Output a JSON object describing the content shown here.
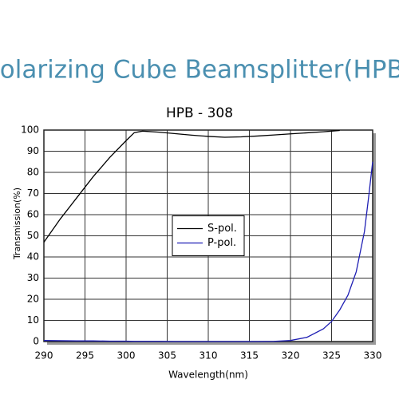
{
  "heading": "Polarizing Cube Beamsplitter(HPB)",
  "chart_data": {
    "type": "line",
    "title": "HPB - 308",
    "x_label": "Wavelength(nm)",
    "y_label": "Transmission(%)",
    "x": [
      290,
      292,
      294,
      296,
      298,
      300,
      301,
      302,
      304,
      306,
      308,
      310,
      312,
      314,
      316,
      318,
      320,
      322,
      324,
      325,
      326,
      327,
      328,
      329,
      329.5,
      330
    ],
    "series": [
      {
        "name": "S-pol.",
        "color": "#000000",
        "values": [
          47,
          58,
          68,
          78,
          87,
          95,
          98.8,
          99.5,
          99,
          98.3,
          97.6,
          97,
          96.6,
          96.8,
          97.2,
          97.7,
          98.2,
          98.7,
          99.2,
          99.5,
          99.8,
          null,
          null,
          null,
          null,
          null
        ]
      },
      {
        "name": "P-pol.",
        "color": "#1f1fb4",
        "values": [
          0.5,
          0.4,
          0.3,
          0.3,
          0.2,
          0.2,
          0.1,
          0.1,
          0.1,
          0,
          0,
          0,
          0,
          0,
          0,
          0.1,
          0.5,
          2,
          6,
          9.5,
          15,
          22,
          33,
          52,
          68,
          85
        ]
      }
    ],
    "xlim": [
      290,
      330
    ],
    "xticks": [
      290,
      295,
      300,
      305,
      310,
      315,
      320,
      325,
      330
    ],
    "ylim": [
      0,
      100
    ],
    "yticks": [
      0,
      10,
      20,
      30,
      40,
      50,
      60,
      70,
      80,
      90,
      100
    ],
    "grid": true,
    "legend": "center"
  }
}
